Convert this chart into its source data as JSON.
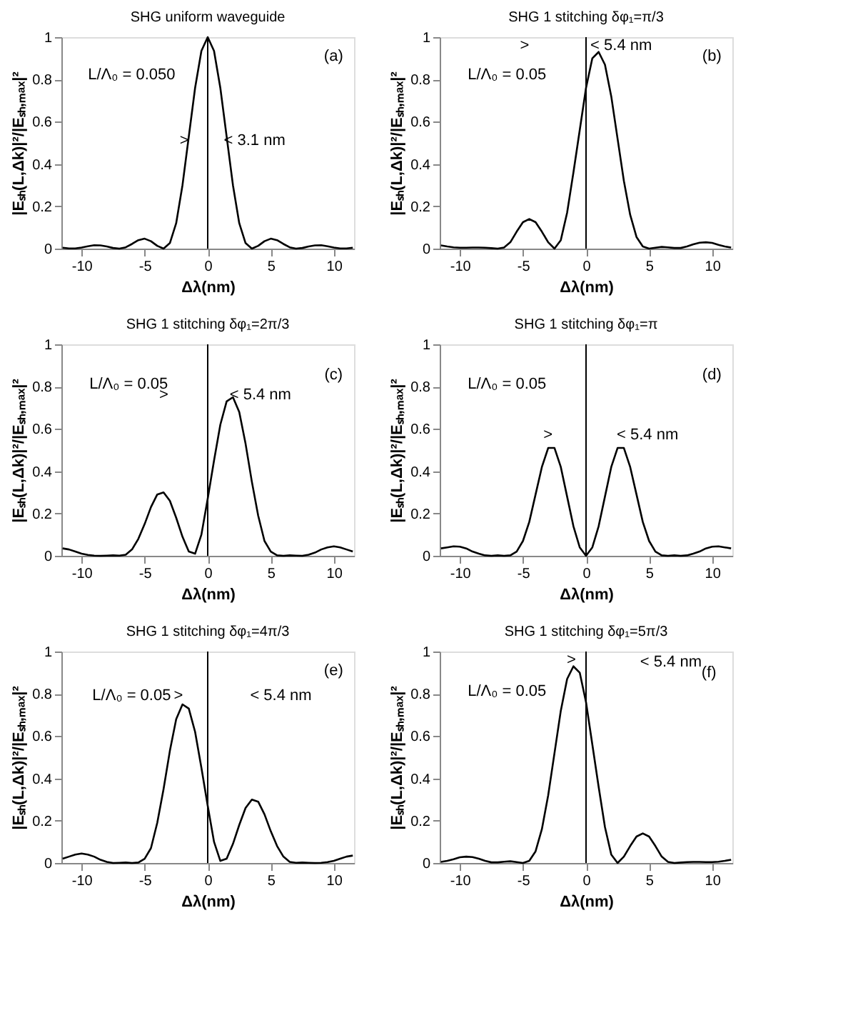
{
  "chart_data": [
    {
      "type": "line",
      "title": "SHG   uniform waveguide",
      "xlabel": "Δλ(nm)",
      "ylabel": "|Eₛₕ(L,Δk)|²/|Eₛₕ,ₘₐₓ|²",
      "xlim": [
        -11.6,
        11.6
      ],
      "ylim": [
        0,
        1
      ],
      "xticks": [
        -10,
        -5,
        0,
        5,
        10
      ],
      "yticks": [
        0,
        0.2,
        0.4,
        0.6,
        0.8,
        1
      ],
      "x": [
        -11.5,
        -11,
        -10.5,
        -10,
        -9.5,
        -9,
        -8.5,
        -8,
        -7.5,
        -7,
        -6.5,
        -6,
        -5.5,
        -5,
        -4.5,
        -4,
        -3.5,
        -3,
        -2.5,
        -2,
        -1.5,
        -1,
        -0.5,
        0,
        0.5,
        1,
        1.5,
        2,
        2.5,
        3,
        3.5,
        4,
        4.5,
        5,
        5.5,
        6,
        6.5,
        7,
        7.5,
        8,
        8.5,
        9,
        9.5,
        10,
        10.5,
        11,
        11.5
      ],
      "series": [
        {
          "color": "#000000",
          "values": [
            0.004,
            0.001,
            0.001,
            0.005,
            0.011,
            0.016,
            0.015,
            0.01,
            0.003,
            0,
            0.006,
            0.022,
            0.04,
            0.047,
            0.035,
            0.013,
            0,
            0.026,
            0.12,
            0.3,
            0.53,
            0.76,
            0.935,
            1,
            0.935,
            0.76,
            0.53,
            0.3,
            0.12,
            0.026,
            0,
            0.013,
            0.035,
            0.047,
            0.04,
            0.022,
            0.006,
            0,
            0.003,
            0.01,
            0.015,
            0.016,
            0.011,
            0.005,
            0.001,
            0.001,
            0.004
          ]
        }
      ],
      "ref_lines": [
        {
          "axis": "x",
          "value": 0
        }
      ],
      "annotations": [
        "L/Λ₀  =  0.050",
        "(a)",
        ">",
        "< 3.1 nm"
      ]
    },
    {
      "type": "line",
      "title": "SHG   1 stitching   δφ₁=π/3",
      "xlabel": "Δλ(nm)",
      "ylabel": "|Eₛₕ(L,Δk)|²/|Eₛₕ,ₘₐₓ|²",
      "xlim": [
        -11.6,
        11.6
      ],
      "ylim": [
        0,
        1
      ],
      "xticks": [
        -10,
        -5,
        0,
        5,
        10
      ],
      "yticks": [
        0,
        0.2,
        0.4,
        0.6,
        0.8,
        1
      ],
      "x": [
        -11.5,
        -11,
        -10.5,
        -10,
        -9.5,
        -9,
        -8.5,
        -8,
        -7.5,
        -7,
        -6.5,
        -6,
        -5.5,
        -5,
        -4.5,
        -4,
        -3.5,
        -3,
        -2.5,
        -2,
        -1.5,
        -1,
        -0.5,
        0,
        0.5,
        1,
        1.5,
        2,
        2.5,
        3,
        3.5,
        4,
        4.5,
        5,
        5.5,
        6,
        6.5,
        7,
        7.5,
        8,
        8.5,
        9,
        9.5,
        10,
        10.5,
        11,
        11.5
      ],
      "series": [
        {
          "color": "#000000",
          "values": [
            0.015,
            0.01,
            0.006,
            0.004,
            0.004,
            0.005,
            0.005,
            0.004,
            0.002,
            0,
            0.005,
            0.03,
            0.08,
            0.125,
            0.14,
            0.125,
            0.08,
            0.03,
            0,
            0.04,
            0.17,
            0.36,
            0.56,
            0.76,
            0.9,
            0.93,
            0.87,
            0.72,
            0.52,
            0.32,
            0.16,
            0.055,
            0.01,
            0,
            0.004,
            0.008,
            0.006,
            0.003,
            0.003,
            0.01,
            0.02,
            0.028,
            0.03,
            0.027,
            0.018,
            0.01,
            0.005
          ]
        }
      ],
      "ref_lines": [
        {
          "axis": "x",
          "value": 0
        }
      ],
      "annotations": [
        "L/Λ₀  =  0.05",
        "(b)",
        ">",
        "< 5.4 nm"
      ]
    },
    {
      "type": "line",
      "title": "SHG   1 stitching   δφ₁=2π/3",
      "xlabel": "Δλ(nm)",
      "ylabel": "|Eₛₕ(L,Δk)|²/|Eₛₕ,ₘₐₓ|²",
      "xlim": [
        -11.6,
        11.6
      ],
      "ylim": [
        0,
        1
      ],
      "xticks": [
        -10,
        -5,
        0,
        5,
        10
      ],
      "yticks": [
        0,
        0.2,
        0.4,
        0.6,
        0.8,
        1
      ],
      "x": [
        -11.5,
        -11,
        -10.5,
        -10,
        -9.5,
        -9,
        -8.5,
        -8,
        -7.5,
        -7,
        -6.5,
        -6,
        -5.5,
        -5,
        -4.5,
        -4,
        -3.5,
        -3,
        -2.5,
        -2,
        -1.5,
        -1,
        -0.5,
        0,
        0.5,
        1,
        1.5,
        2,
        2.5,
        3,
        3.5,
        4,
        4.5,
        5,
        5.5,
        6,
        6.5,
        7,
        7.5,
        8,
        8.5,
        9,
        9.5,
        10,
        10.5,
        11,
        11.5
      ],
      "series": [
        {
          "color": "#000000",
          "values": [
            0.035,
            0.03,
            0.02,
            0.01,
            0.004,
            0.001,
            0,
            0.001,
            0.002,
            0.001,
            0.005,
            0.03,
            0.08,
            0.15,
            0.23,
            0.29,
            0.3,
            0.26,
            0.18,
            0.09,
            0.02,
            0.01,
            0.1,
            0.27,
            0.45,
            0.62,
            0.73,
            0.75,
            0.68,
            0.53,
            0.35,
            0.19,
            0.07,
            0.02,
            0.002,
            0,
            0.002,
            0.001,
            0,
            0.005,
            0.015,
            0.03,
            0.04,
            0.045,
            0.04,
            0.03,
            0.02
          ]
        }
      ],
      "ref_lines": [
        {
          "axis": "x",
          "value": 0
        }
      ],
      "annotations": [
        "L/Λ₀  =  0.05",
        "(c)",
        ">",
        "< 5.4 nm"
      ]
    },
    {
      "type": "line",
      "title": "SHG   1 stitching   δφ₁=π",
      "xlabel": "Δλ(nm)",
      "ylabel": "|Eₛₕ(L,Δk)|²/|Eₛₕ,ₘₐₓ|²",
      "xlim": [
        -11.6,
        11.6
      ],
      "ylim": [
        0,
        1
      ],
      "xticks": [
        -10,
        -5,
        0,
        5,
        10
      ],
      "yticks": [
        0,
        0.2,
        0.4,
        0.6,
        0.8,
        1
      ],
      "x": [
        -11.5,
        -11,
        -10.5,
        -10,
        -9.5,
        -9,
        -8.5,
        -8,
        -7.5,
        -7,
        -6.5,
        -6,
        -5.5,
        -5,
        -4.5,
        -4,
        -3.5,
        -3,
        -2.5,
        -2,
        -1.5,
        -1,
        -0.5,
        0,
        0.5,
        1,
        1.5,
        2,
        2.5,
        3,
        3.5,
        4,
        4.5,
        5,
        5.5,
        6,
        6.5,
        7,
        7.5,
        8,
        8.5,
        9,
        9.5,
        10,
        10.5,
        11,
        11.5
      ],
      "series": [
        {
          "color": "#000000",
          "values": [
            0.035,
            0.04,
            0.045,
            0.043,
            0.035,
            0.02,
            0.01,
            0.002,
            0,
            0.002,
            0,
            0.002,
            0.02,
            0.07,
            0.16,
            0.29,
            0.42,
            0.51,
            0.51,
            0.42,
            0.28,
            0.14,
            0.04,
            0,
            0.04,
            0.14,
            0.28,
            0.42,
            0.51,
            0.51,
            0.42,
            0.29,
            0.16,
            0.07,
            0.02,
            0.002,
            0,
            0.002,
            0,
            0.002,
            0.01,
            0.02,
            0.035,
            0.043,
            0.045,
            0.04,
            0.035
          ]
        }
      ],
      "ref_lines": [
        {
          "axis": "x",
          "value": 0
        }
      ],
      "annotations": [
        "L/Λ₀  =  0.05",
        "(d)",
        ">",
        "< 5.4 nm"
      ]
    },
    {
      "type": "line",
      "title": "SHG   1 stitching   δφ₁=4π/3",
      "xlabel": "Δλ(nm)",
      "ylabel": "|Eₛₕ(L,Δk)|²/|Eₛₕ,ₘₐₓ|²",
      "xlim": [
        -11.6,
        11.6
      ],
      "ylim": [
        0,
        1
      ],
      "xticks": [
        -10,
        -5,
        0,
        5,
        10
      ],
      "yticks": [
        0,
        0.2,
        0.4,
        0.6,
        0.8,
        1
      ],
      "x": [
        -11.5,
        -11,
        -10.5,
        -10,
        -9.5,
        -9,
        -8.5,
        -8,
        -7.5,
        -7,
        -6.5,
        -6,
        -5.5,
        -5,
        -4.5,
        -4,
        -3.5,
        -3,
        -2.5,
        -2,
        -1.5,
        -1,
        -0.5,
        0,
        0.5,
        1,
        1.5,
        2,
        2.5,
        3,
        3.5,
        4,
        4.5,
        5,
        5.5,
        6,
        6.5,
        7,
        7.5,
        8,
        8.5,
        9,
        9.5,
        10,
        10.5,
        11,
        11.5
      ],
      "series": [
        {
          "color": "#000000",
          "values": [
            0.02,
            0.03,
            0.04,
            0.045,
            0.04,
            0.03,
            0.015,
            0.005,
            0,
            0.001,
            0.002,
            0,
            0.002,
            0.02,
            0.07,
            0.19,
            0.35,
            0.53,
            0.68,
            0.75,
            0.73,
            0.62,
            0.45,
            0.27,
            0.1,
            0.01,
            0.02,
            0.09,
            0.18,
            0.26,
            0.3,
            0.29,
            0.23,
            0.15,
            0.08,
            0.03,
            0.005,
            0.001,
            0.002,
            0.001,
            0,
            0.001,
            0.004,
            0.01,
            0.02,
            0.03,
            0.035
          ]
        }
      ],
      "ref_lines": [
        {
          "axis": "x",
          "value": 0
        }
      ],
      "annotations": [
        "L/Λ₀  =  0.05",
        "(e)",
        ">",
        "< 5.4 nm"
      ]
    },
    {
      "type": "line",
      "title": "SHG   1 stitching   δφ₁=5π/3",
      "xlabel": "Δλ(nm)",
      "ylabel": "|Eₛₕ(L,Δk)|²/|Eₛₕ,ₘₐₓ|²",
      "xlim": [
        -11.6,
        11.6
      ],
      "ylim": [
        0,
        1
      ],
      "xticks": [
        -10,
        -5,
        0,
        5,
        10
      ],
      "yticks": [
        0,
        0.2,
        0.4,
        0.6,
        0.8,
        1
      ],
      "x": [
        -11.5,
        -11,
        -10.5,
        -10,
        -9.5,
        -9,
        -8.5,
        -8,
        -7.5,
        -7,
        -6.5,
        -6,
        -5.5,
        -5,
        -4.5,
        -4,
        -3.5,
        -3,
        -2.5,
        -2,
        -1.5,
        -1,
        -0.5,
        0,
        0.5,
        1,
        1.5,
        2,
        2.5,
        3,
        3.5,
        4,
        4.5,
        5,
        5.5,
        6,
        6.5,
        7,
        7.5,
        8,
        8.5,
        9,
        9.5,
        10,
        10.5,
        11,
        11.5
      ],
      "series": [
        {
          "color": "#000000",
          "values": [
            0.005,
            0.01,
            0.018,
            0.027,
            0.03,
            0.028,
            0.02,
            0.01,
            0.003,
            0.003,
            0.006,
            0.008,
            0.004,
            0,
            0.01,
            0.055,
            0.16,
            0.32,
            0.52,
            0.72,
            0.87,
            0.93,
            0.9,
            0.76,
            0.56,
            0.36,
            0.17,
            0.04,
            0,
            0.03,
            0.08,
            0.125,
            0.14,
            0.125,
            0.08,
            0.03,
            0.005,
            0,
            0.002,
            0.004,
            0.005,
            0.005,
            0.004,
            0.004,
            0.006,
            0.01,
            0.015
          ]
        }
      ],
      "ref_lines": [
        {
          "axis": "x",
          "value": 0
        }
      ],
      "annotations": [
        "L/Λ₀  =  0.05",
        "(f)",
        ">",
        "< 5.4 nm"
      ]
    }
  ]
}
